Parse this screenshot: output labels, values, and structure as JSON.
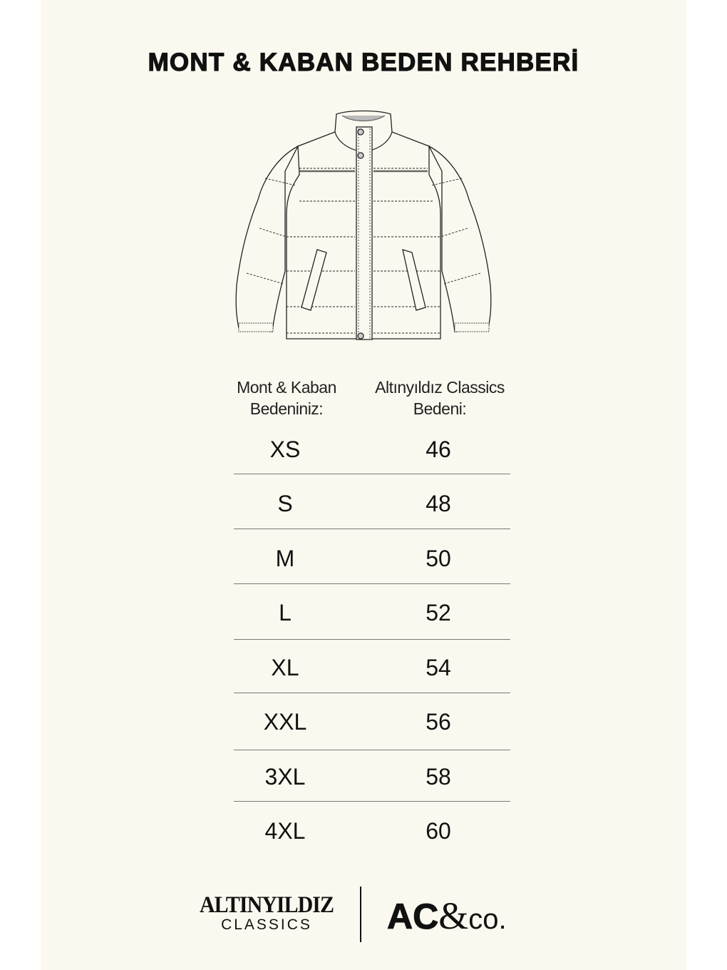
{
  "title": "MONT & KABAN BEDEN REHBERİ",
  "illustration": {
    "icon": "puffer-jacket-drawing"
  },
  "table": {
    "headers": [
      "Mont & Kaban\nBedeniniz:",
      "Altınyıldız Classics\nBedeni:"
    ],
    "header_lines": [
      [
        "Mont & Kaban",
        "Bedeniniz:"
      ],
      [
        "Altınyıldız Classics",
        "Bedeni:"
      ]
    ],
    "rows": [
      {
        "size": "XS",
        "ac_size": "46"
      },
      {
        "size": "S",
        "ac_size": "48"
      },
      {
        "size": "M",
        "ac_size": "50"
      },
      {
        "size": "L",
        "ac_size": "52"
      },
      {
        "size": "XL",
        "ac_size": "54"
      },
      {
        "size": "XXL",
        "ac_size": "56"
      },
      {
        "size": "3XL",
        "ac_size": "58"
      },
      {
        "size": "4XL",
        "ac_size": "60"
      }
    ]
  },
  "footer": {
    "logo_left_top": "ALTINYILDIZ",
    "logo_left_bottom": "CLASSICS",
    "logo_right_ac": "AC",
    "logo_right_amp": "&",
    "logo_right_co": "co."
  },
  "colors": {
    "background": "#fbf9ef",
    "text": "#111111",
    "divider": "#777777"
  }
}
